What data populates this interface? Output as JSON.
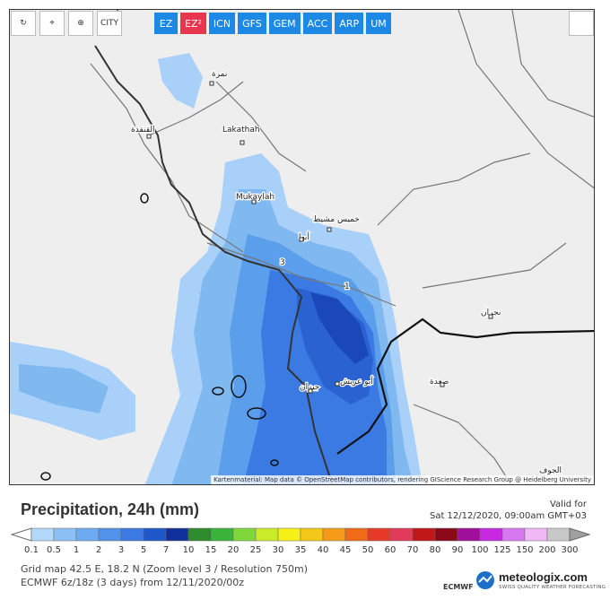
{
  "toolbar": {
    "city": "CITY",
    "models": [
      "EZ",
      "EZ²",
      "ICN",
      "GFS",
      "GEM",
      "ACC",
      "ARP",
      "UM"
    ],
    "active_model": "EZ²"
  },
  "map": {
    "places": [
      "نمرة",
      "القنفذة",
      "Lakathah",
      "Mukaylah",
      "خميس مشيط",
      "أبها",
      "نجران",
      "جيزان",
      "أبو عريش",
      "صعدة",
      "الجوف"
    ],
    "contour_labels": [
      "3",
      "1"
    ],
    "attribution": "Kartenmaterial: Map data © OpenStreetMap contributors, rendering GIScience Research Group @ Heidelberg University"
  },
  "footer": {
    "title": "Precipitation, 24h (mm)",
    "valid_label": "Valid for",
    "valid_time": "Sat 12/12/2020, 09:00am GMT+03",
    "legend": {
      "labels": [
        "0.1",
        "0.5",
        "1",
        "2",
        "3",
        "5",
        "7",
        "10",
        "15",
        "20",
        "25",
        "30",
        "35",
        "40",
        "45",
        "50",
        "60",
        "70",
        "80",
        "90",
        "100",
        "125",
        "150",
        "200",
        "300"
      ],
      "colors": [
        "#b4d8fa",
        "#8cc0f4",
        "#6eaaf0",
        "#5292ea",
        "#3a7ae2",
        "#1e58c8",
        "#12309a",
        "#2e8a2e",
        "#3cb43c",
        "#7ed83c",
        "#c8ec28",
        "#f4f018",
        "#f4c818",
        "#f49a18",
        "#f06a18",
        "#e83a28",
        "#e03c5a",
        "#c01818",
        "#8a0a1a",
        "#a0109a",
        "#c828e0",
        "#d878f0",
        "#f0b8f4",
        "#c8c8c8"
      ],
      "low_color": "#ffffff",
      "high_color": "#a0a0a0"
    },
    "info1": "Grid map 42.5 E, 18.2 N (Zoom level 3 / Resolution 750m)",
    "info2": "ECMWF 6z/18z (3 days) from 12/11/2020/00z",
    "ecmwf": "ECMWF",
    "brand": "meteologix.com",
    "brand_sub": "SWISS QUALITY WEATHER FORECASTING"
  }
}
